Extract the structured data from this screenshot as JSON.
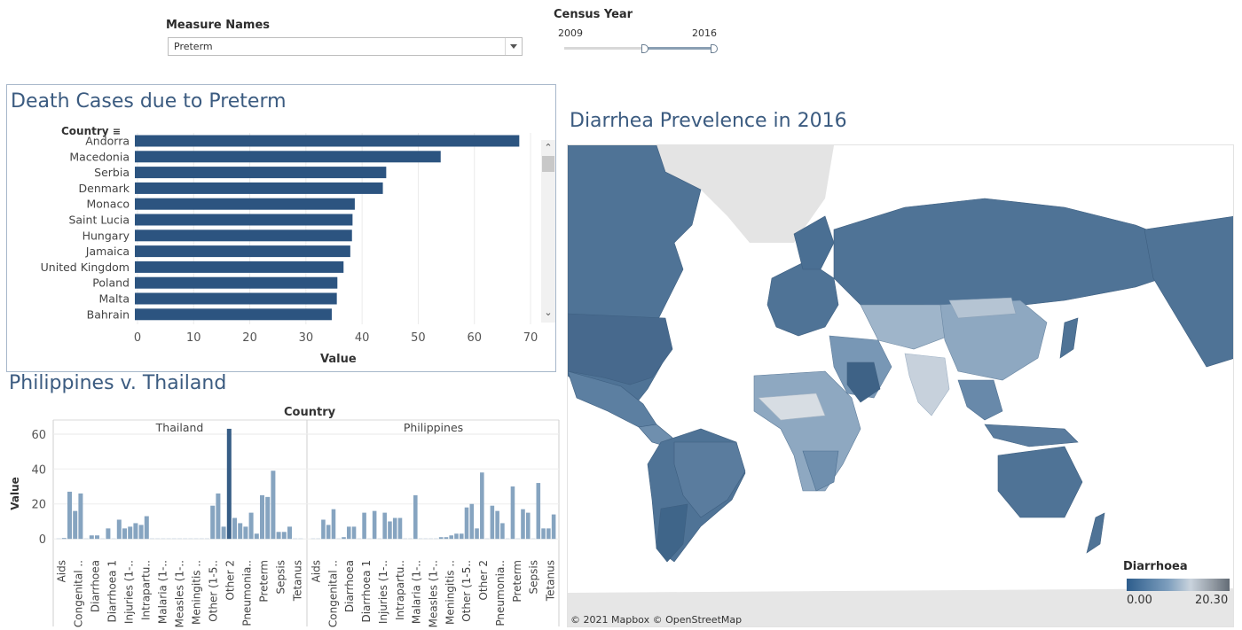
{
  "filters": {
    "measure": {
      "label": "Measure Names",
      "value": "Preterm"
    },
    "year": {
      "label": "Census Year",
      "min_label": "2009",
      "max_label": "2016",
      "selected_min": 2013,
      "selected_max": 2016
    }
  },
  "bar_panel": {
    "title": "Death Cases due to Preterm",
    "header": "Country",
    "xlabel": "Value",
    "sort_icon": "sort-icon"
  },
  "pvt_panel": {
    "title": "Philippines v. Thailand",
    "header": "Country",
    "ylabel": "Value"
  },
  "map_panel": {
    "title": "Diarrhea Prevelence in 2016",
    "credit": "© 2021 Mapbox © OpenStreetMap",
    "legend": {
      "title": "Diarrhoea",
      "min": "0.00",
      "max": "20.30"
    }
  },
  "colors": {
    "bar": "#2c5480",
    "accent": "#3b5b80",
    "column": "#7f9fbd",
    "column_dark": "#2c5480"
  },
  "chart_data": [
    {
      "type": "bar",
      "orientation": "horizontal",
      "title": "Death Cases due to Preterm",
      "xlabel": "Value",
      "ylabel": "Country",
      "categories": [
        "Andorra",
        "Macedonia",
        "Serbia",
        "Denmark",
        "Monaco",
        "Saint Lucia",
        "Hungary",
        "Jamaica",
        "United Kingdom",
        "Poland",
        "Malta",
        "Bahrain"
      ],
      "values": [
        68,
        54,
        44.3,
        43.7,
        38.7,
        38.3,
        38.2,
        37.9,
        36.7,
        35.6,
        35.5,
        34.6
      ],
      "xticks": [
        0,
        10,
        20,
        30,
        40,
        50,
        60,
        70
      ],
      "xlim": [
        0,
        70
      ],
      "grid": true
    },
    {
      "type": "bar",
      "title": "Philippines v. Thailand",
      "ylabel": "Value",
      "yticks": [
        0,
        20,
        40,
        60
      ],
      "ylim": [
        -7,
        66
      ],
      "category_labels": [
        "Aids",
        "Congenital ..",
        "Diarrhoea",
        "Diarrhoea 1",
        "Injuries (1-..",
        "Intrapartu..",
        "Malaria (1-..",
        "Measles (1-..",
        "Meningitis ..",
        "Other (1-5..",
        "Other 2",
        "Pneumonia..",
        "Preterm",
        "Sepsis",
        "Tetanus"
      ],
      "panels": [
        {
          "name": "Thailand",
          "values": [
            0,
            0.5,
            27,
            16,
            26,
            0,
            2,
            2,
            0,
            6,
            0,
            11,
            6,
            7,
            9,
            8,
            13,
            0,
            0,
            0,
            0,
            0,
            0,
            0,
            0,
            0,
            0,
            0,
            19,
            26,
            7,
            63,
            12,
            9,
            7,
            15,
            3,
            25,
            24,
            39,
            4,
            4,
            7,
            0,
            0
          ]
        },
        {
          "name": "Philippines",
          "values": [
            0,
            0,
            11,
            8,
            17,
            0,
            1,
            7,
            7,
            0,
            15,
            0,
            16,
            0,
            15,
            10,
            12,
            12,
            0,
            0,
            25,
            0,
            0,
            0,
            0,
            1,
            1,
            2,
            3,
            3,
            18,
            20,
            6,
            38,
            0,
            19,
            16,
            9,
            0,
            30,
            0,
            17,
            15,
            0,
            32,
            6,
            6,
            14
          ]
        }
      ]
    }
  ]
}
